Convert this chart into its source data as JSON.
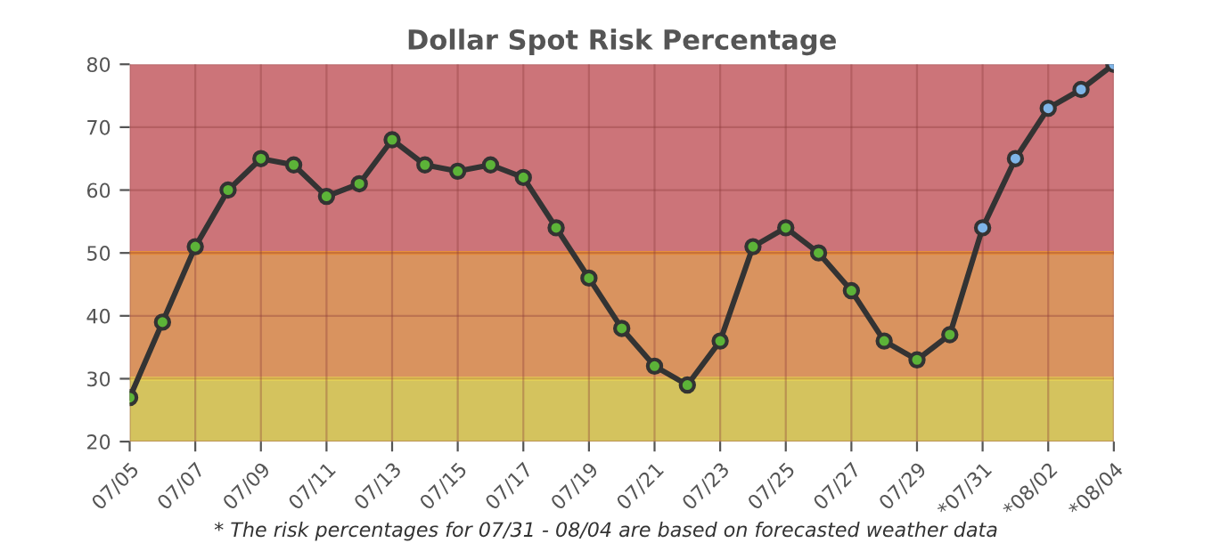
{
  "chart_data": {
    "type": "line",
    "title": "Dollar Spot Risk Percentage",
    "categories": [
      "07/05",
      null,
      "07/07",
      null,
      "07/09",
      null,
      "07/11",
      null,
      "07/13",
      null,
      "07/15",
      null,
      "07/17",
      null,
      "07/19",
      null,
      "07/21",
      null,
      "07/23",
      null,
      "07/25",
      null,
      "07/27",
      null,
      "07/29",
      null,
      "*07/31",
      null,
      "*08/02",
      null,
      "*08/04"
    ],
    "series": [
      {
        "color": "#333333",
        "values": [
          27,
          39,
          51,
          60,
          65,
          64,
          59,
          61,
          68,
          64,
          63,
          64,
          62,
          54,
          46,
          38,
          32,
          29,
          36,
          51,
          54,
          50,
          44,
          36,
          33,
          37,
          54,
          65,
          73,
          76,
          80
        ],
        "colors": [
          "#5cb338",
          "#5cb338",
          "#5cb338",
          "#5cb338",
          "#5cb338",
          "#5cb338",
          "#5cb338",
          "#5cb338",
          "#5cb338",
          "#5cb338",
          "#5cb338",
          "#5cb338",
          "#5cb338",
          "#5cb338",
          "#5cb338",
          "#5cb338",
          "#5cb338",
          "#5cb338",
          "#5cb338",
          "#5cb338",
          "#5cb338",
          "#5cb338",
          "#5cb338",
          "#5cb338",
          "#5cb338",
          "#5cb338",
          "#7fb5e8",
          "#7fb5e8",
          "#7fb5e8",
          "#7fb5e8",
          "#7fb5e8"
        ]
      }
    ],
    "ylim": [
      20,
      80
    ],
    "yticks": [
      20,
      30,
      40,
      50,
      60,
      70,
      80
    ],
    "bands": [
      {
        "axis": "y",
        "from": 20,
        "to": 30,
        "color": "#d4c35e"
      },
      {
        "axis": "y",
        "from": 30,
        "to": 50,
        "color": "#d9935f"
      },
      {
        "axis": "y",
        "from": 50,
        "to": 80,
        "color": "#cc7479"
      }
    ],
    "ref_lines": [
      {
        "axis": "y",
        "value": 30,
        "color": "#eedd55",
        "line_style": "solid"
      },
      {
        "axis": "y",
        "value": 50,
        "color": "#e8903a",
        "line_style": "solid"
      }
    ],
    "grid": true,
    "marker": "circle",
    "line_style": "solid",
    "legend": false,
    "annotations": [
      "* The risk percentages for 07/31 - 08/04 are based on forecasted weather data"
    ]
  }
}
